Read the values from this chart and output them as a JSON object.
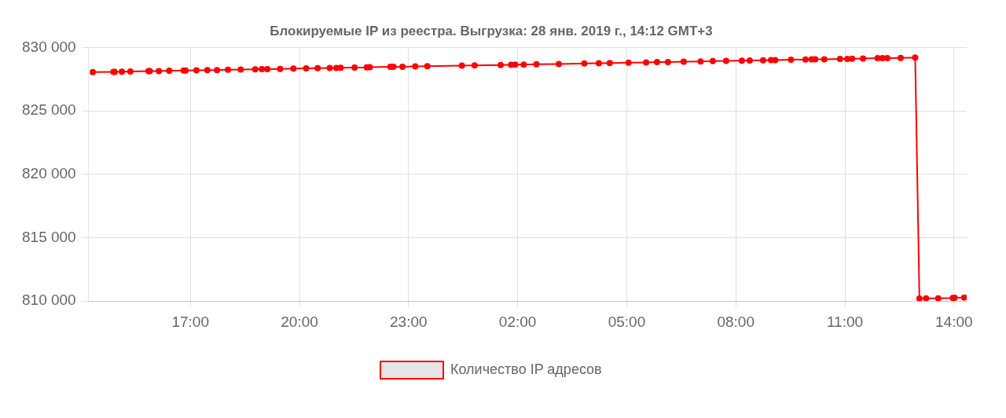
{
  "chart_data": {
    "type": "line",
    "title": "Блокируемые IP из реестра. Выгрузка: 28 янв. 2019 г., 14:12 GMT+3",
    "xlim": [
      "2019-01-27T14:12",
      "2019-01-28T14:21"
    ],
    "xticks": [
      {
        "value": "2019-01-27T17:00",
        "label": "17:00"
      },
      {
        "value": "2019-01-27T20:00",
        "label": "20:00"
      },
      {
        "value": "2019-01-27T23:00",
        "label": "23:00"
      },
      {
        "value": "2019-01-28T02:00",
        "label": "02:00"
      },
      {
        "value": "2019-01-28T05:00",
        "label": "05:00"
      },
      {
        "value": "2019-01-28T08:00",
        "label": "08:00"
      },
      {
        "value": "2019-01-28T11:00",
        "label": "11:00"
      },
      {
        "value": "2019-01-28T14:00",
        "label": "14:00"
      }
    ],
    "ylim": [
      810000,
      830000
    ],
    "yticks": [
      {
        "value": 810000,
        "label": "810 000"
      },
      {
        "value": 815000,
        "label": "815 000"
      },
      {
        "value": 820000,
        "label": "820 000"
      },
      {
        "value": 825000,
        "label": "825 000"
      },
      {
        "value": 830000,
        "label": "830 000"
      }
    ],
    "grid": true,
    "legend": "bottom",
    "marker": "circle",
    "line_style": "solid",
    "series": [
      {
        "name": "Количество IP адресов",
        "color": "#ff0000",
        "x": [
          "2019-01-27T14:19",
          "2019-01-27T14:53",
          "2019-01-27T14:55",
          "2019-01-27T15:07",
          "2019-01-27T15:21",
          "2019-01-27T15:51",
          "2019-01-27T15:53",
          "2019-01-27T16:08",
          "2019-01-27T16:25",
          "2019-01-27T16:49",
          "2019-01-27T16:52",
          "2019-01-27T17:10",
          "2019-01-27T17:28",
          "2019-01-27T17:44",
          "2019-01-27T18:02",
          "2019-01-27T18:23",
          "2019-01-27T18:47",
          "2019-01-27T18:58",
          "2019-01-27T19:07",
          "2019-01-27T19:28",
          "2019-01-27T19:50",
          "2019-01-27T20:11",
          "2019-01-27T20:30",
          "2019-01-27T20:50",
          "2019-01-27T21:01",
          "2019-01-27T21:08",
          "2019-01-27T21:31",
          "2019-01-27T21:51",
          "2019-01-27T21:56",
          "2019-01-27T22:30",
          "2019-01-27T22:35",
          "2019-01-27T22:50",
          "2019-01-27T23:11",
          "2019-01-27T23:31",
          "2019-01-28T00:28",
          "2019-01-28T00:49",
          "2019-01-28T01:32",
          "2019-01-28T01:49",
          "2019-01-28T01:56",
          "2019-01-28T02:10",
          "2019-01-28T02:31",
          "2019-01-28T03:08",
          "2019-01-28T03:50",
          "2019-01-28T04:14",
          "2019-01-28T04:32",
          "2019-01-28T05:03",
          "2019-01-28T05:32",
          "2019-01-28T05:50",
          "2019-01-28T06:08",
          "2019-01-28T06:34",
          "2019-01-28T07:02",
          "2019-01-28T07:22",
          "2019-01-28T07:44",
          "2019-01-28T08:10",
          "2019-01-28T08:23",
          "2019-01-28T08:45",
          "2019-01-28T08:58",
          "2019-01-28T09:05",
          "2019-01-28T09:31",
          "2019-01-28T09:55",
          "2019-01-28T10:05",
          "2019-01-28T10:11",
          "2019-01-28T10:26",
          "2019-01-28T10:52",
          "2019-01-28T11:04",
          "2019-01-28T11:12",
          "2019-01-28T11:30",
          "2019-01-28T11:54",
          "2019-01-28T12:02",
          "2019-01-28T12:10",
          "2019-01-28T12:32",
          "2019-01-28T12:56",
          "2019-01-28T13:03",
          "2019-01-28T13:14",
          "2019-01-28T13:34",
          "2019-01-28T13:58",
          "2019-01-28T14:01",
          "2019-01-28T14:17"
        ],
        "values": [
          828050,
          828080,
          828080,
          828090,
          828100,
          828130,
          828130,
          828140,
          828160,
          828180,
          828180,
          828190,
          828210,
          828220,
          828240,
          828260,
          828280,
          828290,
          828290,
          828310,
          828330,
          828350,
          828360,
          828380,
          828390,
          828400,
          828420,
          828430,
          828440,
          828470,
          828470,
          828480,
          828500,
          828520,
          828570,
          828580,
          828620,
          828630,
          828640,
          828650,
          828670,
          828700,
          828740,
          828760,
          828770,
          828800,
          828820,
          828840,
          828850,
          828880,
          828900,
          828920,
          828940,
          828960,
          828970,
          828990,
          829000,
          829000,
          829030,
          829050,
          829060,
          829060,
          829070,
          829090,
          829100,
          829110,
          829130,
          829150,
          829150,
          829160,
          829180,
          829200,
          810200,
          810210,
          810220,
          810250,
          810260,
          810280
        ]
      }
    ]
  }
}
